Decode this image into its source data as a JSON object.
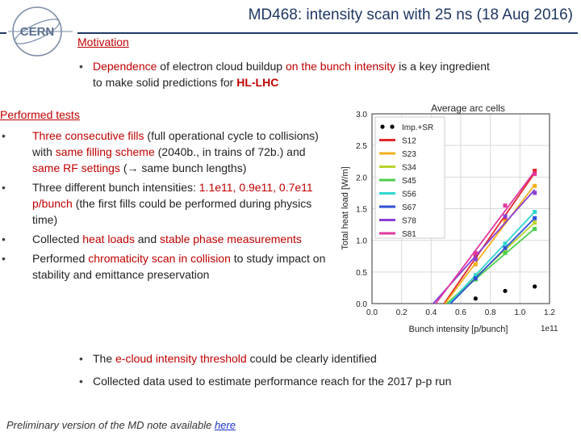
{
  "header": {
    "logo_text": "CERN",
    "title": "MD468: intensity scan with 25 ns (18 Aug 2016)"
  },
  "motivation": {
    "heading": "Motivation",
    "bullet": {
      "p1": "Dependence",
      "p2": " of electron cloud buildup ",
      "p3": "on the bunch intensity",
      "p4": " is a key ingredient to make solid predictions for ",
      "p5": "HL-LHC"
    }
  },
  "performed_tests": {
    "heading": "Performed tests",
    "b1": {
      "p1": "Three consecutive fills",
      "p2": " (full operational cycle to collisions) with ",
      "p3": "same filling scheme",
      "p4": " (2040b., in trains of 72b.) and ",
      "p5": "same RF settings",
      "p6": " (",
      "arrow": "→",
      "p7": " same bunch lengths)"
    },
    "b2": {
      "p1": "Three different bunch intensities: ",
      "p2": "1.1e11, 0.9e11, 0.7e11 p/bunch",
      "p3": " (the first fills could be performed during physics time)"
    },
    "b3": {
      "p1": "Collected ",
      "p2": "heat loads",
      "p3": " and ",
      "p4": "stable phase measurements"
    },
    "b4": {
      "p1": "Performed ",
      "p2": "chromaticity scan in collision",
      "p3": " to study impact on stability and emittance preservation"
    }
  },
  "conclusions": {
    "b1": {
      "p1": "The ",
      "p2": "e-cloud intensity threshold",
      "p3": " could be clearly identified"
    },
    "b2": "Collected data used to estimate performance reach for the 2017 p-p run"
  },
  "footer": {
    "text": "Preliminary version of the MD note available ",
    "link": "here"
  },
  "chart_data": {
    "type": "line",
    "title": "Average arc cells",
    "xlabel": "Bunch intensity [p/bunch]",
    "ylabel": "Total heat load [W/m]",
    "x_exponent": "1e11",
    "xlim": [
      0.0,
      1.2
    ],
    "ylim": [
      0.0,
      3.0
    ],
    "xticks": [
      "0.0",
      "0.2",
      "0.4",
      "0.6",
      "0.8",
      "1.0",
      "1.2"
    ],
    "yticks": [
      "0.0",
      "0.5",
      "1.0",
      "1.5",
      "2.0",
      "2.5",
      "3.0"
    ],
    "x": [
      0.7,
      0.9,
      1.1
    ],
    "series": [
      {
        "name": "Imp.+SR",
        "color": "#000000",
        "style": "points",
        "values": [
          0.08,
          0.2,
          0.27
        ]
      },
      {
        "name": "S12",
        "color": "#e2262a",
        "values": [
          0.75,
          1.33,
          2.1
        ]
      },
      {
        "name": "S23",
        "color": "#f2b01d",
        "values": [
          0.62,
          1.3,
          1.86
        ]
      },
      {
        "name": "S34",
        "color": "#b9d32a",
        "values": [
          0.42,
          0.85,
          1.28
        ]
      },
      {
        "name": "S45",
        "color": "#4ccf4c",
        "values": [
          0.38,
          0.8,
          1.18
        ]
      },
      {
        "name": "S56",
        "color": "#2fd6cf",
        "values": [
          0.45,
          0.95,
          1.45
        ]
      },
      {
        "name": "S67",
        "color": "#2f4fd6",
        "values": [
          0.4,
          0.88,
          1.35
        ]
      },
      {
        "name": "S78",
        "color": "#8a3fd6",
        "values": [
          0.7,
          1.38,
          1.75
        ]
      },
      {
        "name": "S81",
        "color": "#e2379f",
        "values": [
          0.8,
          1.55,
          2.05
        ]
      }
    ]
  },
  "colors": {
    "title": "#1f3864",
    "highlight": "#c00000",
    "link": "#1a33cc"
  }
}
